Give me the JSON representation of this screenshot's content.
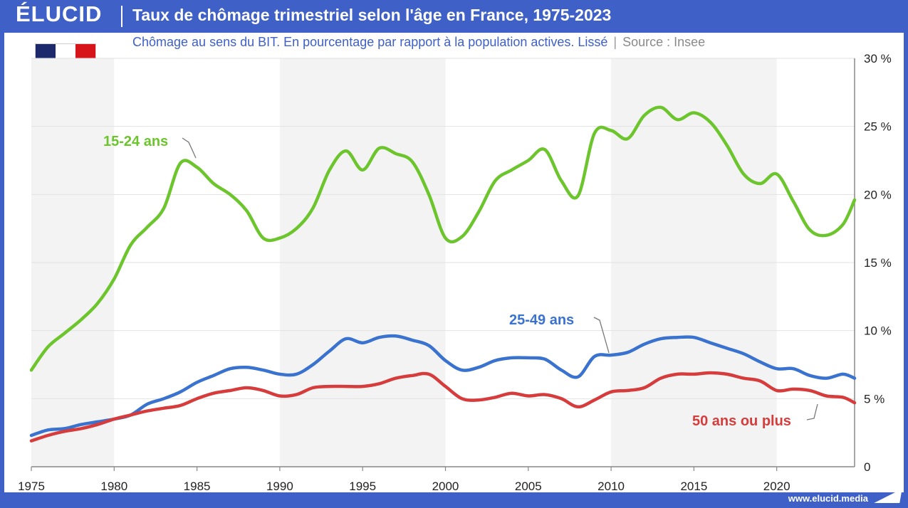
{
  "header": {
    "brand": "ÉLUCID",
    "title": "Taux de chômage trimestriel selon l'âge en France, 1975-2023"
  },
  "subtitle": {
    "text": "Chômage au sens du BIT. En pourcentage par rapport à la population actives. Lissé",
    "separator": "|",
    "source": "Source : Insee"
  },
  "flag": {
    "colors": [
      "#1c2a6b",
      "#ffffff",
      "#d7141a"
    ],
    "icon": "france-flag-icon"
  },
  "footer": {
    "url": "www.elucid.media"
  },
  "chart_data": {
    "type": "line",
    "xlim": [
      1975,
      2024.7
    ],
    "ylim": [
      0,
      30
    ],
    "y_axis_side": "right",
    "x_ticks": [
      1975,
      1980,
      1985,
      1990,
      1995,
      2000,
      2005,
      2010,
      2015,
      2020
    ],
    "x_tick_labels": [
      "1975",
      "1980",
      "1985",
      "1990",
      "1995",
      "2000",
      "2005",
      "2010",
      "2015",
      "2020"
    ],
    "y_ticks": [
      0,
      5,
      10,
      15,
      20,
      25,
      30
    ],
    "y_tick_labels": [
      "0",
      "5 %",
      "10 %",
      "15 %",
      "20 %",
      "25 %",
      "30 %"
    ],
    "grid": true,
    "shaded_bands": [
      [
        1975,
        1980
      ],
      [
        1990,
        2000
      ],
      [
        2010,
        2020
      ]
    ],
    "series": [
      {
        "name": "15-24 ans",
        "color": "#6cc52d",
        "x": [
          1975,
          1976,
          1977,
          1978,
          1979,
          1980,
          1981,
          1982,
          1983,
          1984,
          1985,
          1986,
          1987,
          1988,
          1989,
          1990,
          1991,
          1992,
          1993,
          1994,
          1995,
          1996,
          1997,
          1998,
          1999,
          2000,
          2001,
          2002,
          2003,
          2004,
          2005,
          2006,
          2007,
          2008,
          2009,
          2010,
          2011,
          2012,
          2013,
          2014,
          2015,
          2016,
          2017,
          2018,
          2019,
          2020,
          2021,
          2022,
          2023,
          2024,
          2024.7
        ],
        "y": [
          7.1,
          8.8,
          9.8,
          10.8,
          12.0,
          13.8,
          16.3,
          17.6,
          19.0,
          22.3,
          22.0,
          20.8,
          20.0,
          18.8,
          16.8,
          16.8,
          17.5,
          19.0,
          21.8,
          23.2,
          21.8,
          23.4,
          23.0,
          22.4,
          20.0,
          16.8,
          16.9,
          18.7,
          21.0,
          21.8,
          22.5,
          23.3,
          21.0,
          19.9,
          24.5,
          24.7,
          24.1,
          25.8,
          26.4,
          25.5,
          26.0,
          25.3,
          23.6,
          21.5,
          20.8,
          21.5,
          19.5,
          17.4,
          17.0,
          17.8,
          19.6
        ]
      },
      {
        "name": "25-49 ans",
        "color": "#3a72cf",
        "x": [
          1975,
          1976,
          1977,
          1978,
          1979,
          1980,
          1981,
          1982,
          1983,
          1984,
          1985,
          1986,
          1987,
          1988,
          1989,
          1990,
          1991,
          1992,
          1993,
          1994,
          1995,
          1996,
          1997,
          1998,
          1999,
          2000,
          2001,
          2002,
          2003,
          2004,
          2005,
          2006,
          2007,
          2008,
          2009,
          2010,
          2011,
          2012,
          2013,
          2014,
          2015,
          2016,
          2017,
          2018,
          2019,
          2020,
          2021,
          2022,
          2023,
          2024,
          2024.7
        ],
        "y": [
          2.3,
          2.7,
          2.8,
          3.1,
          3.3,
          3.5,
          3.8,
          4.6,
          5.0,
          5.5,
          6.2,
          6.7,
          7.2,
          7.3,
          7.1,
          6.8,
          6.8,
          7.5,
          8.5,
          9.4,
          9.1,
          9.5,
          9.6,
          9.3,
          8.9,
          7.8,
          7.1,
          7.3,
          7.8,
          8.0,
          8.0,
          7.9,
          7.1,
          6.6,
          8.1,
          8.2,
          8.4,
          9.0,
          9.4,
          9.5,
          9.5,
          9.1,
          8.7,
          8.3,
          7.7,
          7.2,
          7.2,
          6.7,
          6.5,
          6.8,
          6.5
        ]
      },
      {
        "name": "50 ans ou plus",
        "color": "#d63c3c",
        "x": [
          1975,
          1976,
          1977,
          1978,
          1979,
          1980,
          1981,
          1982,
          1983,
          1984,
          1985,
          1986,
          1987,
          1988,
          1989,
          1990,
          1991,
          1992,
          1993,
          1994,
          1995,
          1996,
          1997,
          1998,
          1999,
          2000,
          2001,
          2002,
          2003,
          2004,
          2005,
          2006,
          2007,
          2008,
          2009,
          2010,
          2011,
          2012,
          2013,
          2014,
          2015,
          2016,
          2017,
          2018,
          2019,
          2020,
          2021,
          2022,
          2023,
          2024,
          2024.7
        ],
        "y": [
          1.9,
          2.3,
          2.6,
          2.8,
          3.1,
          3.5,
          3.8,
          4.1,
          4.3,
          4.5,
          5.0,
          5.4,
          5.6,
          5.8,
          5.6,
          5.2,
          5.3,
          5.8,
          5.9,
          5.9,
          5.9,
          6.1,
          6.5,
          6.7,
          6.8,
          5.9,
          5.0,
          4.9,
          5.1,
          5.4,
          5.2,
          5.3,
          5.0,
          4.4,
          4.9,
          5.5,
          5.6,
          5.8,
          6.5,
          6.8,
          6.8,
          6.9,
          6.8,
          6.5,
          6.3,
          5.6,
          5.7,
          5.6,
          5.2,
          5.1,
          4.7
        ]
      }
    ]
  }
}
